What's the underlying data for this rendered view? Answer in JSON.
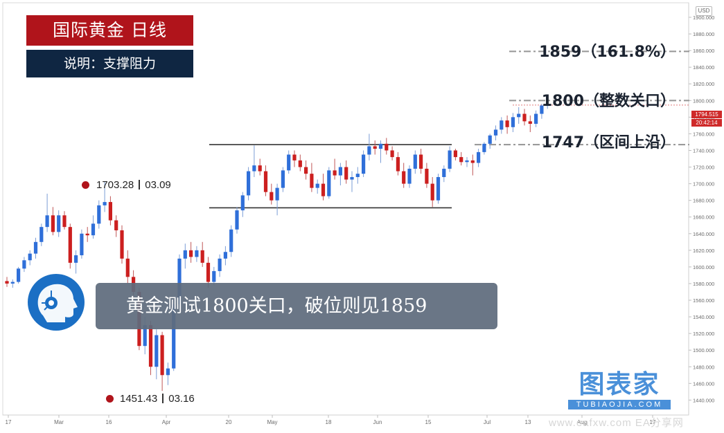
{
  "title_badge": "国际黄金 日线",
  "subtitle_badge": "说明：支撑阻力",
  "caption": "黄金测试1800关口，破位则见1859",
  "levels": [
    {
      "value": 1859,
      "label": "1859（161.8%）"
    },
    {
      "value": 1800,
      "label": "1800（整数关口）"
    },
    {
      "value": 1747,
      "label": "1747（区间上沿）"
    }
  ],
  "annotations": {
    "high": {
      "price": "1703.28",
      "date": "03.09",
      "value": 1703.28
    },
    "low": {
      "price": "1451.43",
      "date": "03.16",
      "value": 1451.43
    }
  },
  "price_axis": {
    "currency": "USD",
    "current_price": "1794.515",
    "countdown": "20:42:14",
    "ticks": [
      "1900.000",
      "1880.000",
      "1860.000",
      "1840.000",
      "1820.000",
      "1800.000",
      "1780.000",
      "1760.000",
      "1740.000",
      "1720.000",
      "1700.000",
      "1680.000",
      "1660.000",
      "1640.000",
      "1620.000",
      "1600.000",
      "1580.000",
      "1560.000",
      "1540.000",
      "1520.000",
      "1500.000",
      "1480.000",
      "1460.000",
      "1440.000"
    ]
  },
  "time_axis": {
    "ticks": [
      "17",
      "Mar",
      "16",
      "Apr",
      "20",
      "May",
      "18",
      "Jun",
      "15",
      "Jul",
      "13",
      "Aug",
      "17"
    ]
  },
  "brand": {
    "main": "图表家",
    "sub": "TUBIAOJIA.COM"
  },
  "watermark": "www.eafxw.com EA分享网",
  "colors": {
    "up": "#2f6fd9",
    "down": "#cc1f1f",
    "level_line": "#9a9a9a",
    "range_line": "#333333"
  },
  "chart_data": {
    "type": "candlestick",
    "ylim": [
      1430,
      1910
    ],
    "ohlc": [
      [
        1583,
        1588,
        1576,
        1580
      ],
      [
        1580,
        1585,
        1575,
        1582
      ],
      [
        1582,
        1600,
        1580,
        1598
      ],
      [
        1598,
        1612,
        1594,
        1608
      ],
      [
        1608,
        1620,
        1602,
        1616
      ],
      [
        1616,
        1635,
        1610,
        1630
      ],
      [
        1630,
        1652,
        1625,
        1648
      ],
      [
        1648,
        1688,
        1642,
        1662
      ],
      [
        1662,
        1672,
        1638,
        1642
      ],
      [
        1642,
        1668,
        1636,
        1662
      ],
      [
        1662,
        1667,
        1645,
        1648
      ],
      [
        1648,
        1652,
        1598,
        1605
      ],
      [
        1605,
        1620,
        1592,
        1614
      ],
      [
        1614,
        1645,
        1610,
        1640
      ],
      [
        1640,
        1648,
        1630,
        1638
      ],
      [
        1638,
        1662,
        1634,
        1652
      ],
      [
        1652,
        1680,
        1646,
        1674
      ],
      [
        1674,
        1703,
        1666,
        1678
      ],
      [
        1678,
        1685,
        1650,
        1656
      ],
      [
        1656,
        1662,
        1636,
        1644
      ],
      [
        1644,
        1650,
        1604,
        1610
      ],
      [
        1610,
        1620,
        1580,
        1588
      ],
      [
        1588,
        1596,
        1560,
        1570
      ],
      [
        1570,
        1575,
        1500,
        1505
      ],
      [
        1505,
        1540,
        1495,
        1530
      ],
      [
        1530,
        1535,
        1470,
        1480
      ],
      [
        1480,
        1525,
        1465,
        1518
      ],
      [
        1518,
        1522,
        1451,
        1470
      ],
      [
        1470,
        1485,
        1458,
        1478
      ],
      [
        1478,
        1560,
        1475,
        1555
      ],
      [
        1555,
        1615,
        1550,
        1610
      ],
      [
        1610,
        1628,
        1598,
        1620
      ],
      [
        1620,
        1630,
        1605,
        1612
      ],
      [
        1612,
        1625,
        1606,
        1620
      ],
      [
        1620,
        1630,
        1600,
        1605
      ],
      [
        1605,
        1612,
        1575,
        1582
      ],
      [
        1582,
        1600,
        1578,
        1595
      ],
      [
        1595,
        1615,
        1588,
        1610
      ],
      [
        1610,
        1625,
        1602,
        1618
      ],
      [
        1618,
        1650,
        1612,
        1645
      ],
      [
        1645,
        1672,
        1640,
        1668
      ],
      [
        1668,
        1690,
        1660,
        1686
      ],
      [
        1686,
        1720,
        1680,
        1715
      ],
      [
        1715,
        1746,
        1708,
        1722
      ],
      [
        1722,
        1730,
        1710,
        1715
      ],
      [
        1715,
        1722,
        1685,
        1690
      ],
      [
        1690,
        1700,
        1675,
        1680
      ],
      [
        1680,
        1700,
        1662,
        1695
      ],
      [
        1695,
        1720,
        1690,
        1716
      ],
      [
        1716,
        1740,
        1712,
        1735
      ],
      [
        1735,
        1740,
        1720,
        1728
      ],
      [
        1728,
        1735,
        1715,
        1720
      ],
      [
        1720,
        1728,
        1705,
        1712
      ],
      [
        1712,
        1725,
        1690,
        1695
      ],
      [
        1695,
        1705,
        1688,
        1700
      ],
      [
        1700,
        1712,
        1680,
        1685
      ],
      [
        1685,
        1720,
        1682,
        1716
      ],
      [
        1716,
        1730,
        1705,
        1710
      ],
      [
        1710,
        1725,
        1698,
        1720
      ],
      [
        1720,
        1728,
        1700,
        1705
      ],
      [
        1705,
        1715,
        1690,
        1708
      ],
      [
        1708,
        1720,
        1700,
        1712
      ],
      [
        1712,
        1740,
        1708,
        1735
      ],
      [
        1735,
        1760,
        1728,
        1745
      ],
      [
        1745,
        1752,
        1735,
        1742
      ],
      [
        1742,
        1752,
        1725,
        1748
      ],
      [
        1748,
        1755,
        1735,
        1740
      ],
      [
        1740,
        1745,
        1728,
        1732
      ],
      [
        1732,
        1738,
        1710,
        1715
      ],
      [
        1715,
        1725,
        1695,
        1700
      ],
      [
        1700,
        1722,
        1695,
        1718
      ],
      [
        1718,
        1740,
        1712,
        1735
      ],
      [
        1735,
        1742,
        1712,
        1718
      ],
      [
        1718,
        1725,
        1695,
        1700
      ],
      [
        1700,
        1708,
        1672,
        1680
      ],
      [
        1680,
        1712,
        1676,
        1708
      ],
      [
        1708,
        1722,
        1702,
        1718
      ],
      [
        1718,
        1745,
        1714,
        1740
      ],
      [
        1740,
        1742,
        1728,
        1732
      ],
      [
        1732,
        1738,
        1722,
        1726
      ],
      [
        1726,
        1732,
        1720,
        1728
      ],
      [
        1728,
        1735,
        1710,
        1725
      ],
      [
        1725,
        1742,
        1720,
        1738
      ],
      [
        1738,
        1750,
        1735,
        1748
      ],
      [
        1748,
        1760,
        1742,
        1758
      ],
      [
        1758,
        1770,
        1752,
        1765
      ],
      [
        1765,
        1780,
        1760,
        1776
      ],
      [
        1776,
        1782,
        1760,
        1768
      ],
      [
        1768,
        1785,
        1762,
        1780
      ],
      [
        1780,
        1792,
        1772,
        1784
      ],
      [
        1784,
        1790,
        1770,
        1775
      ],
      [
        1775,
        1782,
        1762,
        1772
      ],
      [
        1772,
        1788,
        1768,
        1784
      ],
      [
        1784,
        1796,
        1778,
        1794
      ],
      [
        1794,
        1798,
        1790,
        1794.5
      ]
    ],
    "range_box": {
      "top": 1747,
      "bottom": 1671
    },
    "resistance_levels": [
      1859,
      1800,
      1747
    ]
  }
}
